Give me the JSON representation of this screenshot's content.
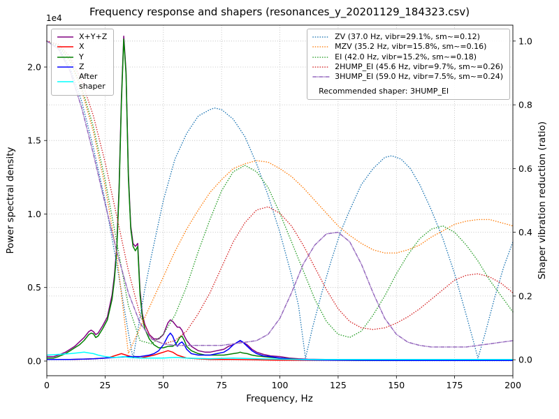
{
  "chart_data": {
    "type": "line",
    "title": "Frequency response and shapers (resonances_y_20201129_184323.csv)",
    "xlabel": "Frequency, Hz",
    "ylabel_left": "Power spectral density",
    "ylabel_right": "Shaper vibration reduction (ratio)",
    "y_left_offset": "1e4",
    "y_left_units": "1e4",
    "xlim": [
      0,
      200
    ],
    "ylim_left": [
      -0.1,
      2.285
    ],
    "ylim_right": [
      -0.05,
      1.05
    ],
    "xticks": [
      0,
      25,
      50,
      75,
      100,
      125,
      150,
      175,
      200
    ],
    "yticks_left": [
      0.0,
      0.5,
      1.0,
      1.5,
      2.0
    ],
    "yticks_right": [
      0.0,
      0.2,
      0.4,
      0.6,
      0.8,
      1.0
    ],
    "grid": true,
    "legend_right_footer": "Recommended shaper: 3HUMP_EI",
    "psd_series": [
      {
        "name": "X+Y+Z",
        "label": "X+Y+Z",
        "color": "#800080",
        "style": "solid",
        "axis": "left",
        "x": [
          0,
          3,
          5,
          8,
          10,
          12,
          14,
          16,
          18,
          19,
          20,
          21,
          22,
          24,
          26,
          28,
          29,
          30,
          31,
          32,
          33,
          34,
          35,
          36,
          37,
          38,
          39,
          40,
          41,
          42,
          44,
          46,
          48,
          50,
          51,
          52,
          53,
          54,
          55,
          56,
          57,
          58,
          59,
          60,
          62,
          65,
          68,
          70,
          73,
          76,
          78,
          80,
          82,
          83,
          84,
          86,
          88,
          90,
          93,
          96,
          100,
          104,
          108,
          112,
          120,
          130,
          140,
          160,
          180,
          200
        ],
        "y": [
          0.03,
          0.03,
          0.04,
          0.06,
          0.08,
          0.1,
          0.13,
          0.16,
          0.2,
          0.21,
          0.2,
          0.18,
          0.19,
          0.24,
          0.3,
          0.45,
          0.58,
          0.78,
          1.18,
          1.78,
          2.21,
          1.97,
          1.28,
          0.92,
          0.8,
          0.78,
          0.8,
          0.48,
          0.32,
          0.25,
          0.18,
          0.15,
          0.15,
          0.18,
          0.22,
          0.26,
          0.28,
          0.27,
          0.25,
          0.23,
          0.23,
          0.21,
          0.17,
          0.14,
          0.1,
          0.07,
          0.06,
          0.06,
          0.07,
          0.08,
          0.1,
          0.11,
          0.13,
          0.135,
          0.13,
          0.11,
          0.08,
          0.06,
          0.045,
          0.035,
          0.03,
          0.02,
          0.015,
          0.012,
          0.01,
          0.008,
          0.006,
          0.005,
          0.004,
          0.004
        ]
      },
      {
        "name": "X",
        "label": "X",
        "color": "#ff0000",
        "style": "solid",
        "axis": "left",
        "x": [
          0,
          10,
          20,
          25,
          28,
          30,
          32,
          34,
          36,
          38,
          40,
          43,
          46,
          48,
          50,
          52,
          54,
          56,
          58,
          60,
          65,
          70,
          80,
          90,
          100,
          120,
          150,
          200
        ],
        "y": [
          0.01,
          0.01,
          0.015,
          0.02,
          0.03,
          0.04,
          0.05,
          0.04,
          0.03,
          0.03,
          0.02,
          0.03,
          0.04,
          0.05,
          0.06,
          0.07,
          0.06,
          0.04,
          0.03,
          0.02,
          0.015,
          0.01,
          0.01,
          0.008,
          0.006,
          0.005,
          0.004,
          0.003
        ]
      },
      {
        "name": "Y",
        "label": "Y",
        "color": "#008000",
        "style": "solid",
        "axis": "left",
        "x": [
          0,
          3,
          5,
          8,
          10,
          12,
          14,
          16,
          18,
          19,
          20,
          21,
          22,
          24,
          26,
          28,
          29,
          30,
          31,
          32,
          33,
          34,
          35,
          36,
          37,
          38,
          39,
          40,
          41,
          42,
          44,
          46,
          48,
          50,
          51,
          52,
          53,
          54,
          55,
          56,
          57,
          58,
          59,
          60,
          62,
          65,
          68,
          70,
          73,
          76,
          78,
          80,
          82,
          83,
          84,
          86,
          88,
          90,
          93,
          96,
          100,
          104,
          108,
          112,
          120,
          130,
          140,
          160,
          180,
          200
        ],
        "y": [
          0.02,
          0.02,
          0.03,
          0.05,
          0.07,
          0.09,
          0.11,
          0.14,
          0.18,
          0.19,
          0.185,
          0.16,
          0.17,
          0.22,
          0.28,
          0.42,
          0.55,
          0.75,
          1.15,
          1.75,
          2.19,
          1.95,
          1.25,
          0.9,
          0.78,
          0.75,
          0.78,
          0.45,
          0.3,
          0.22,
          0.15,
          0.11,
          0.09,
          0.09,
          0.095,
          0.1,
          0.1,
          0.1,
          0.11,
          0.13,
          0.16,
          0.17,
          0.14,
          0.1,
          0.07,
          0.05,
          0.04,
          0.04,
          0.04,
          0.04,
          0.045,
          0.05,
          0.055,
          0.06,
          0.055,
          0.05,
          0.04,
          0.035,
          0.03,
          0.025,
          0.02,
          0.015,
          0.01,
          0.008,
          0.006,
          0.005,
          0.004,
          0.003,
          0.003,
          0.003
        ]
      },
      {
        "name": "Z",
        "label": "Z",
        "color": "#0000ff",
        "style": "solid",
        "axis": "left",
        "x": [
          0,
          10,
          20,
          30,
          35,
          40,
          44,
          46,
          48,
          50,
          51,
          52,
          53,
          54,
          55,
          56,
          57,
          58,
          59,
          60,
          62,
          65,
          68,
          70,
          73,
          76,
          78,
          80,
          82,
          83,
          84,
          86,
          88,
          90,
          93,
          96,
          100,
          105,
          110,
          120,
          140,
          160,
          180,
          200
        ],
        "y": [
          0.01,
          0.01,
          0.015,
          0.025,
          0.03,
          0.03,
          0.04,
          0.05,
          0.07,
          0.11,
          0.14,
          0.17,
          0.19,
          0.17,
          0.13,
          0.1,
          0.12,
          0.13,
          0.11,
          0.08,
          0.05,
          0.04,
          0.04,
          0.04,
          0.05,
          0.06,
          0.08,
          0.11,
          0.13,
          0.14,
          0.13,
          0.1,
          0.07,
          0.05,
          0.035,
          0.03,
          0.02,
          0.012,
          0.008,
          0.006,
          0.004,
          0.003,
          0.003,
          0.003
        ]
      },
      {
        "name": "After shaper",
        "label": "After\nshaper",
        "color": "#00ffff",
        "style": "solid",
        "axis": "left",
        "x": [
          0,
          5,
          10,
          13,
          16,
          18,
          20,
          22,
          25,
          28,
          30,
          33,
          35,
          40,
          45,
          50,
          55,
          60,
          70,
          80,
          90,
          100,
          110,
          130,
          160,
          200
        ],
        "y": [
          0.04,
          0.045,
          0.05,
          0.055,
          0.06,
          0.055,
          0.05,
          0.04,
          0.03,
          0.025,
          0.025,
          0.03,
          0.025,
          0.02,
          0.02,
          0.02,
          0.025,
          0.02,
          0.015,
          0.02,
          0.015,
          0.012,
          0.01,
          0.01,
          0.01,
          0.01
        ]
      }
    ],
    "shaper_series": [
      {
        "name": "ZV",
        "label": "ZV (37.0 Hz, vibr=29.1%, sm~=0.12)",
        "color": "#1f77b4",
        "style": "dotted",
        "axis": "right",
        "x": [
          0,
          5,
          10,
          15,
          20,
          25,
          30,
          33,
          35,
          37,
          39,
          42,
          45,
          50,
          55,
          60,
          65,
          70,
          72,
          75,
          80,
          85,
          90,
          95,
          100,
          105,
          108,
          111,
          114,
          118,
          122,
          126,
          130,
          135,
          140,
          145,
          148,
          152,
          156,
          160,
          165,
          170,
          175,
          180,
          183,
          185,
          188,
          192,
          196,
          200
        ],
        "y": [
          1.0,
          0.98,
          0.915,
          0.81,
          0.665,
          0.5,
          0.3,
          0.17,
          0.085,
          0.005,
          0.09,
          0.22,
          0.33,
          0.5,
          0.63,
          0.71,
          0.765,
          0.785,
          0.79,
          0.785,
          0.755,
          0.7,
          0.615,
          0.515,
          0.4,
          0.265,
          0.17,
          0.005,
          0.1,
          0.21,
          0.31,
          0.4,
          0.47,
          0.55,
          0.6,
          0.635,
          0.64,
          0.63,
          0.6,
          0.55,
          0.47,
          0.38,
          0.27,
          0.14,
          0.06,
          0.005,
          0.08,
          0.19,
          0.29,
          0.37
        ]
      },
      {
        "name": "MZV",
        "label": "MZV (35.2 Hz, vibr=15.8%, sm~=0.16)",
        "color": "#ff7f0e",
        "style": "dotted",
        "axis": "right",
        "x": [
          0,
          5,
          10,
          15,
          20,
          25,
          30,
          35,
          40,
          45,
          50,
          55,
          60,
          65,
          70,
          75,
          80,
          85,
          90,
          95,
          100,
          105,
          110,
          115,
          120,
          125,
          130,
          135,
          140,
          145,
          150,
          155,
          160,
          165,
          170,
          175,
          180,
          185,
          190,
          195,
          200
        ],
        "y": [
          1.0,
          0.985,
          0.935,
          0.845,
          0.715,
          0.545,
          0.33,
          0.02,
          0.1,
          0.18,
          0.26,
          0.34,
          0.41,
          0.47,
          0.525,
          0.565,
          0.6,
          0.615,
          0.625,
          0.62,
          0.6,
          0.575,
          0.54,
          0.5,
          0.46,
          0.42,
          0.39,
          0.365,
          0.345,
          0.335,
          0.335,
          0.345,
          0.36,
          0.385,
          0.405,
          0.425,
          0.435,
          0.44,
          0.44,
          0.43,
          0.42
        ]
      },
      {
        "name": "EI",
        "label": "EI (42.0 Hz, vibr=15.2%, sm~=0.18)",
        "color": "#2ca02c",
        "style": "dotted",
        "axis": "right",
        "x": [
          0,
          5,
          10,
          15,
          20,
          25,
          30,
          35,
          40,
          45,
          50,
          55,
          60,
          65,
          70,
          75,
          80,
          85,
          90,
          95,
          100,
          105,
          110,
          115,
          120,
          125,
          130,
          135,
          140,
          145,
          150,
          155,
          160,
          165,
          170,
          175,
          180,
          185,
          190,
          195,
          200
        ],
        "y": [
          1.0,
          0.985,
          0.94,
          0.855,
          0.73,
          0.565,
          0.37,
          0.17,
          0.06,
          0.05,
          0.08,
          0.14,
          0.23,
          0.34,
          0.44,
          0.53,
          0.59,
          0.61,
          0.59,
          0.54,
          0.46,
          0.37,
          0.28,
          0.19,
          0.12,
          0.08,
          0.07,
          0.09,
          0.14,
          0.2,
          0.27,
          0.33,
          0.38,
          0.41,
          0.42,
          0.4,
          0.36,
          0.31,
          0.25,
          0.2,
          0.15
        ]
      },
      {
        "name": "2HUMP_EI",
        "label": "2HUMP_EI (45.6 Hz, vibr=9.7%, sm~=0.26)",
        "color": "#d62728",
        "style": "dotted",
        "axis": "right",
        "x": [
          0,
          5,
          10,
          15,
          20,
          25,
          30,
          35,
          40,
          45,
          50,
          55,
          60,
          65,
          70,
          75,
          80,
          85,
          90,
          95,
          100,
          105,
          110,
          115,
          120,
          125,
          130,
          135,
          140,
          145,
          150,
          155,
          160,
          165,
          170,
          175,
          180,
          185,
          190,
          195,
          200
        ],
        "y": [
          1.0,
          0.99,
          0.95,
          0.875,
          0.765,
          0.62,
          0.45,
          0.28,
          0.14,
          0.065,
          0.05,
          0.06,
          0.09,
          0.145,
          0.21,
          0.29,
          0.37,
          0.43,
          0.47,
          0.48,
          0.46,
          0.42,
          0.36,
          0.29,
          0.22,
          0.16,
          0.12,
          0.1,
          0.095,
          0.1,
          0.115,
          0.135,
          0.16,
          0.19,
          0.22,
          0.25,
          0.265,
          0.27,
          0.26,
          0.24,
          0.21
        ]
      },
      {
        "name": "3HUMP_EI",
        "label": "3HUMP_EI (59.0 Hz, vibr=7.5%, sm~=0.24)",
        "color": "#9467bd",
        "style": "dashdot",
        "axis": "right",
        "x": [
          0,
          5,
          10,
          15,
          20,
          25,
          30,
          35,
          40,
          45,
          50,
          55,
          60,
          65,
          70,
          75,
          80,
          85,
          90,
          95,
          100,
          105,
          110,
          115,
          120,
          125,
          130,
          135,
          140,
          145,
          150,
          155,
          160,
          165,
          170,
          175,
          180,
          185,
          190,
          195,
          200
        ],
        "y": [
          1.0,
          0.975,
          0.905,
          0.79,
          0.645,
          0.49,
          0.34,
          0.21,
          0.115,
          0.065,
          0.05,
          0.045,
          0.045,
          0.045,
          0.045,
          0.045,
          0.05,
          0.055,
          0.06,
          0.08,
          0.13,
          0.21,
          0.3,
          0.36,
          0.395,
          0.4,
          0.37,
          0.3,
          0.21,
          0.13,
          0.08,
          0.055,
          0.045,
          0.04,
          0.04,
          0.04,
          0.04,
          0.045,
          0.05,
          0.055,
          0.06
        ]
      }
    ]
  }
}
